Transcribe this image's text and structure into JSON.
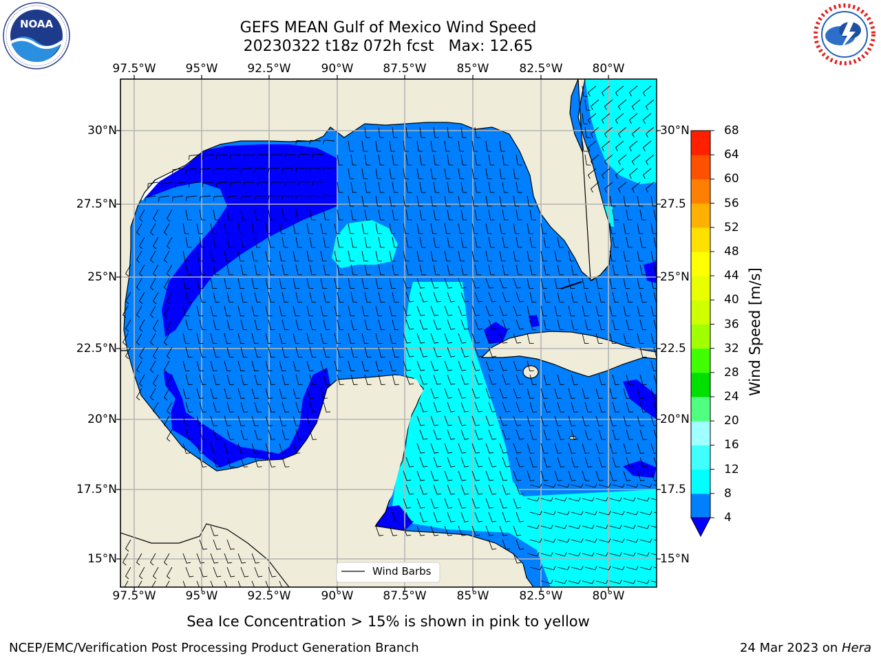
{
  "title": {
    "line1": "GEFS MEAN Gulf of Mexico Wind Speed",
    "line2": "20230322 t18z 072h fcst   Max: 12.65"
  },
  "logos": {
    "left": {
      "name": "NOAA",
      "ring_text": "NATIONAL OCEANIC AND ATMOSPHERIC ADMINISTRATION · U.S. DEPARTMENT OF COMMERCE"
    },
    "right": {
      "ring_text": "NATIONAL WEATHER SERVICE"
    }
  },
  "axes": {
    "lon_labels": [
      "97.5°W",
      "95°W",
      "92.5°W",
      "90°W",
      "87.5°W",
      "85°W",
      "82.5°W",
      "80°W"
    ],
    "lat_labels": [
      "30°N",
      "27.5°N",
      "25°N",
      "22.5°N",
      "20°N",
      "17.5°N",
      "15°N"
    ],
    "lat_labels_right": [
      "30°N",
      "27.5",
      "25°N",
      "22.5",
      "20°N",
      "17.5",
      "15°N"
    ]
  },
  "legend": {
    "wind_barbs": "Wind Barbs"
  },
  "colorbar": {
    "title": "Wind Speed [m/s]",
    "levels": [
      "4",
      "8",
      "12",
      "16",
      "20",
      "24",
      "28",
      "32",
      "36",
      "40",
      "44",
      "48",
      "52",
      "56",
      "60",
      "64",
      "68"
    ],
    "colors": [
      "#0080ff",
      "#00ffff",
      "#40ffff",
      "#a0ffff",
      "#50ff80",
      "#00e000",
      "#40ff00",
      "#a0ff00",
      "#d0ff00",
      "#e8ff00",
      "#ffff00",
      "#ffe000",
      "#ffb000",
      "#ff8000",
      "#ff5000",
      "#ff2000"
    ],
    "under_color": "#0000ff"
  },
  "colors": {
    "land": "#efedda",
    "lt4": "#0000ff",
    "band4_8": "#0080ff",
    "band8_12": "#00ffff",
    "grid": "#b4b4b4"
  },
  "note": "Sea Ice Concentration > 15% is shown in pink to yellow",
  "footer": {
    "left": "NCEP/EMC/Verification Post Processing Product Generation Branch",
    "right_prefix": "24 Mar 2023 on ",
    "right_machine": "Hera"
  }
}
